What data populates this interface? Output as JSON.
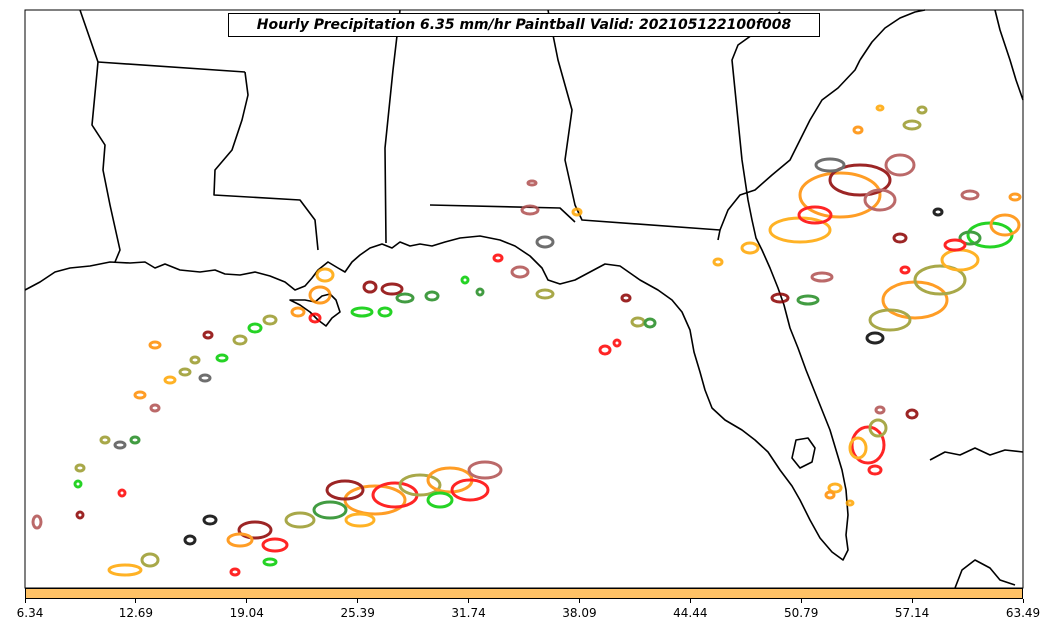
{
  "title": "Hourly Precipitation 6.35 mm/hr Paintball Valid: 202105122100f008",
  "colorbar": {
    "color": "#ffc266",
    "min": 6.34,
    "max": 63.49,
    "ticks": [
      "6.34",
      "12.69",
      "19.04",
      "25.39",
      "31.74",
      "38.09",
      "44.44",
      "50.79",
      "57.14",
      "63.49"
    ]
  },
  "map": {
    "region": "Gulf of Mexico / Southeastern United States",
    "paintball_colors": [
      "#8b0000",
      "#ff0000",
      "#ff8c00",
      "#ffa500",
      "#00cc00",
      "#228b22",
      "#9a9a2a",
      "#555555",
      "#b05050",
      "#ff6b6b"
    ]
  },
  "chart_data": {
    "type": "map",
    "title": "Hourly Precipitation 6.35 mm/hr Paintball Valid: 202105122100f008",
    "colorbar_range": [
      6.34,
      63.49
    ],
    "colorbar_ticks": [
      6.34,
      12.69,
      19.04,
      25.39,
      31.74,
      38.09,
      44.44,
      50.79,
      57.14,
      63.49
    ]
  }
}
